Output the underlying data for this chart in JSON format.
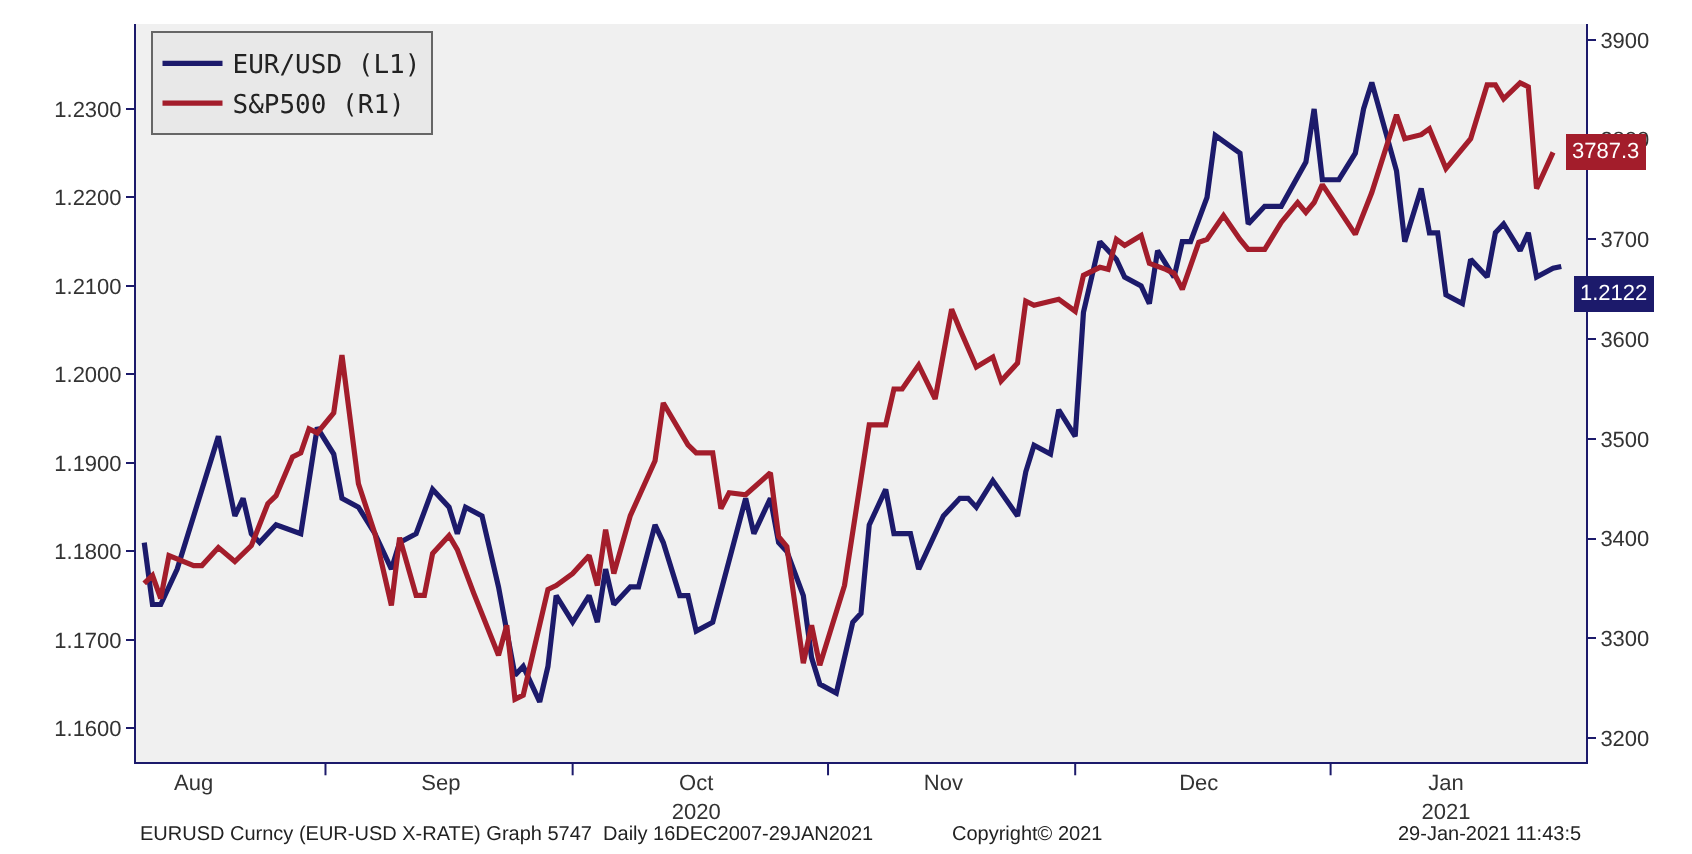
{
  "chart_data": {
    "type": "line",
    "xlim": [
      "2020-08-09",
      "2021-02-01"
    ],
    "xticks": [
      {
        "value": "2020-08-16",
        "label": "Aug"
      },
      {
        "value": "2020-09-01",
        "label": null
      },
      {
        "value": "2020-09-15",
        "label": "Sep"
      },
      {
        "value": "2020-10-01",
        "label": null
      },
      {
        "value": "2020-10-16",
        "label": "Oct\n2020"
      },
      {
        "value": "2020-11-01",
        "label": null
      },
      {
        "value": "2020-11-15",
        "label": "Nov"
      },
      {
        "value": "2020-12-01",
        "label": null
      },
      {
        "value": "2020-12-16",
        "label": "Dec"
      },
      {
        "value": "2021-01-01",
        "label": null
      },
      {
        "value": "2021-01-15",
        "label": "Jan\n2021"
      }
    ],
    "ylim": [
      1.1562,
      1.2396
    ],
    "yticks": [
      {
        "value": 1.16,
        "label": "1.1600"
      },
      {
        "value": 1.17,
        "label": "1.1700"
      },
      {
        "value": 1.18,
        "label": "1.1800"
      },
      {
        "value": 1.19,
        "label": "1.1900"
      },
      {
        "value": 1.2,
        "label": "1.2000"
      },
      {
        "value": 1.21,
        "label": "1.2100"
      },
      {
        "value": 1.22,
        "label": "1.2200"
      },
      {
        "value": 1.23,
        "label": "1.2300"
      }
    ],
    "y2lim": [
      3176,
      3916
    ],
    "y2ticks": [
      3200,
      3300,
      3400,
      3500,
      3600,
      3700,
      3800,
      3900
    ],
    "grid": false,
    "legend": "top left",
    "annotations": [
      "EURUSD Curncy (EUR-USD X-RATE) Graph 5747  Daily 16DEC2007-29JAN2021",
      "Copyright© 2021",
      "29-Jan-2021 11:43:5"
    ],
    "series": [
      {
        "name": "EUR/USD (L1)",
        "color": "#1c1a6b",
        "axis": "y",
        "x": [
          "2020-08-10",
          "2020-08-11",
          "2020-08-12",
          "2020-08-14",
          "2020-08-17",
          "2020-08-19",
          "2020-08-21",
          "2020-08-22",
          "2020-08-23",
          "2020-08-24",
          "2020-08-26",
          "2020-08-29",
          "2020-08-30",
          "2020-08-31",
          "2020-09-02",
          "2020-09-03",
          "2020-09-05",
          "2020-09-07",
          "2020-09-09",
          "2020-09-10",
          "2020-09-12",
          "2020-09-14",
          "2020-09-16",
          "2020-09-17",
          "2020-09-18",
          "2020-09-20",
          "2020-09-22",
          "2020-09-24",
          "2020-09-25",
          "2020-09-27",
          "2020-09-28",
          "2020-09-29",
          "2020-10-01",
          "2020-10-03",
          "2020-10-04",
          "2020-10-05",
          "2020-10-06",
          "2020-10-08",
          "2020-10-09",
          "2020-10-11",
          "2020-10-12",
          "2020-10-14",
          "2020-10-15",
          "2020-10-16",
          "2020-10-18",
          "2020-10-22",
          "2020-10-23",
          "2020-10-25",
          "2020-10-26",
          "2020-10-27",
          "2020-10-29",
          "2020-10-30",
          "2020-10-31",
          "2020-11-02",
          "2020-11-04",
          "2020-11-05",
          "2020-11-06",
          "2020-11-08",
          "2020-11-09",
          "2020-11-11",
          "2020-11-12",
          "2020-11-15",
          "2020-11-17",
          "2020-11-18",
          "2020-11-19",
          "2020-11-21",
          "2020-11-24",
          "2020-11-25",
          "2020-11-26",
          "2020-11-28",
          "2020-11-29",
          "2020-12-01",
          "2020-12-02",
          "2020-12-04",
          "2020-12-06",
          "2020-12-07",
          "2020-12-09",
          "2020-12-10",
          "2020-12-11",
          "2020-12-13",
          "2020-12-14",
          "2020-12-15",
          "2020-12-17",
          "2020-12-18",
          "2020-12-21",
          "2020-12-22",
          "2020-12-24",
          "2020-12-25",
          "2020-12-26",
          "2020-12-29",
          "2020-12-30",
          "2020-12-31",
          "2021-01-02",
          "2021-01-04",
          "2021-01-05",
          "2021-01-06",
          "2021-01-09",
          "2021-01-10",
          "2021-01-12",
          "2021-01-13",
          "2021-01-14",
          "2021-01-15",
          "2021-01-17",
          "2021-01-18",
          "2021-01-20",
          "2021-01-21",
          "2021-01-22",
          "2021-01-24",
          "2021-01-25",
          "2021-01-26",
          "2021-01-28",
          "2021-01-29"
        ],
        "values": [
          1.181,
          1.174,
          1.174,
          1.178,
          1.187,
          1.193,
          1.184,
          1.186,
          1.182,
          1.181,
          1.183,
          1.182,
          1.188,
          1.194,
          1.191,
          1.186,
          1.185,
          1.182,
          1.178,
          1.181,
          1.182,
          1.187,
          1.185,
          1.182,
          1.185,
          1.184,
          1.176,
          1.166,
          1.167,
          1.163,
          1.167,
          1.175,
          1.172,
          1.175,
          1.172,
          1.178,
          1.174,
          1.176,
          1.176,
          1.183,
          1.181,
          1.175,
          1.175,
          1.171,
          1.172,
          1.186,
          1.182,
          1.186,
          1.181,
          1.18,
          1.175,
          1.168,
          1.165,
          1.164,
          1.172,
          1.173,
          1.183,
          1.187,
          1.182,
          1.182,
          1.178,
          1.184,
          1.186,
          1.186,
          1.185,
          1.188,
          1.184,
          1.189,
          1.192,
          1.191,
          1.196,
          1.193,
          1.207,
          1.215,
          1.213,
          1.211,
          1.21,
          1.208,
          1.214,
          1.211,
          1.215,
          1.215,
          1.22,
          1.227,
          1.225,
          1.217,
          1.219,
          1.219,
          1.219,
          1.224,
          1.23,
          1.222,
          1.222,
          1.225,
          1.23,
          1.233,
          1.223,
          1.215,
          1.221,
          1.216,
          1.216,
          1.209,
          1.208,
          1.213,
          1.211,
          1.216,
          1.217,
          1.214,
          1.216,
          1.211,
          1.212,
          1.2122
        ],
        "value_labels": [
          null,
          null,
          null,
          null,
          null,
          null,
          null,
          null,
          null,
          null,
          null,
          null,
          null,
          null,
          null,
          null,
          null,
          null,
          null,
          null,
          null,
          null,
          null,
          null,
          null,
          null,
          null,
          null,
          null,
          null,
          null,
          null,
          null,
          null,
          null,
          null,
          null,
          null,
          null,
          null,
          null,
          null,
          null,
          null,
          null,
          null,
          null,
          null,
          null,
          null,
          null,
          null,
          null,
          null,
          null,
          null,
          null,
          null,
          null,
          null,
          null,
          null,
          null,
          null,
          null,
          null,
          null,
          null,
          null,
          null,
          null,
          null,
          null,
          null,
          null,
          null,
          null,
          null,
          null,
          null,
          null,
          null,
          null,
          null,
          null,
          null,
          null,
          null,
          null,
          null,
          null,
          null,
          null,
          null,
          null,
          null,
          null,
          null,
          null,
          null,
          null,
          null,
          null,
          null,
          null,
          null,
          null,
          null,
          null,
          null,
          null,
          "1.2122"
        ]
      },
      {
        "name": "S&P500 (R1)",
        "color": "#a31d2b",
        "axis": "y2",
        "x": [
          "2020-08-10",
          "2020-08-11",
          "2020-08-12",
          "2020-08-13",
          "2020-08-16",
          "2020-08-17",
          "2020-08-19",
          "2020-08-21",
          "2020-08-23",
          "2020-08-25",
          "2020-08-26",
          "2020-08-28",
          "2020-08-29",
          "2020-08-30",
          "2020-08-31",
          "2020-09-02",
          "2020-09-03",
          "2020-09-05",
          "2020-09-07",
          "2020-09-09",
          "2020-09-10",
          "2020-09-12",
          "2020-09-13",
          "2020-09-14",
          "2020-09-16",
          "2020-09-17",
          "2020-09-19",
          "2020-09-22",
          "2020-09-23",
          "2020-09-24",
          "2020-09-25",
          "2020-09-28",
          "2020-09-29",
          "2020-10-01",
          "2020-10-03",
          "2020-10-04",
          "2020-10-05",
          "2020-10-06",
          "2020-10-08",
          "2020-10-11",
          "2020-10-12",
          "2020-10-15",
          "2020-10-16",
          "2020-10-18",
          "2020-10-19",
          "2020-10-20",
          "2020-10-22",
          "2020-10-25",
          "2020-10-26",
          "2020-10-27",
          "2020-10-29",
          "2020-10-30",
          "2020-10-31",
          "2020-11-03",
          "2020-11-06",
          "2020-11-08",
          "2020-11-09",
          "2020-11-10",
          "2020-11-12",
          "2020-11-14",
          "2020-11-16",
          "2020-11-17",
          "2020-11-19",
          "2020-11-21",
          "2020-11-22",
          "2020-11-24",
          "2020-11-25",
          "2020-11-26",
          "2020-11-29",
          "2020-12-01",
          "2020-12-02",
          "2020-12-04",
          "2020-12-05",
          "2020-12-06",
          "2020-12-07",
          "2020-12-09",
          "2020-12-10",
          "2020-12-12",
          "2020-12-13",
          "2020-12-14",
          "2020-12-16",
          "2020-12-17",
          "2020-12-19",
          "2020-12-21",
          "2020-12-22",
          "2020-12-24",
          "2020-12-26",
          "2020-12-28",
          "2020-12-29",
          "2020-12-30",
          "2020-12-31",
          "2021-01-04",
          "2021-01-06",
          "2021-01-09",
          "2021-01-10",
          "2021-01-12",
          "2021-01-13",
          "2021-01-15",
          "2021-01-18",
          "2021-01-20",
          "2021-01-21",
          "2021-01-22",
          "2021-01-24",
          "2021-01-25",
          "2021-01-26",
          "2021-01-28"
        ],
        "values": [
          3355,
          3363,
          3340,
          3383,
          3373,
          3373,
          3391,
          3377,
          3393,
          3435,
          3443,
          3482,
          3486,
          3510,
          3506,
          3526,
          3584,
          3455,
          3405,
          3333,
          3401,
          3343,
          3343,
          3385,
          3403,
          3389,
          3345,
          3283,
          3313,
          3239,
          3243,
          3349,
          3353,
          3365,
          3383,
          3353,
          3409,
          3365,
          3423,
          3478,
          3536,
          3494,
          3486,
          3486,
          3430,
          3446,
          3444,
          3466,
          3402,
          3392,
          3275,
          3313,
          3273,
          3353,
          3514,
          3514,
          3550,
          3550,
          3574,
          3540,
          3630,
          3610,
          3572,
          3582,
          3558,
          3576,
          3638,
          3634,
          3640,
          3628,
          3664,
          3672,
          3670,
          3700,
          3694,
          3704,
          3676,
          3670,
          3666,
          3650,
          3697,
          3700,
          3724,
          3700,
          3690,
          3690,
          3717,
          3737,
          3727,
          3737,
          3755,
          3705,
          3747,
          3825,
          3801,
          3805,
          3811,
          3771,
          3801,
          3855,
          3855,
          3841,
          3857,
          3853,
          3751,
          3787.3
        ],
        "value_labels": [
          null,
          null,
          null,
          null,
          null,
          null,
          null,
          null,
          null,
          null,
          null,
          null,
          null,
          null,
          null,
          null,
          null,
          null,
          null,
          null,
          null,
          null,
          null,
          null,
          null,
          null,
          null,
          null,
          null,
          null,
          null,
          null,
          null,
          null,
          null,
          null,
          null,
          null,
          null,
          null,
          null,
          null,
          null,
          null,
          null,
          null,
          null,
          null,
          null,
          null,
          null,
          null,
          null,
          null,
          null,
          null,
          null,
          null,
          null,
          null,
          null,
          null,
          null,
          null,
          null,
          null,
          null,
          null,
          null,
          null,
          null,
          null,
          null,
          null,
          null,
          null,
          null,
          null,
          null,
          null,
          null,
          null,
          null,
          null,
          null,
          null,
          null,
          null,
          null,
          null,
          null,
          null,
          null,
          null,
          null,
          null,
          null,
          null,
          null,
          null,
          null,
          null,
          null,
          null,
          null,
          "3787.3"
        ]
      }
    ]
  }
}
